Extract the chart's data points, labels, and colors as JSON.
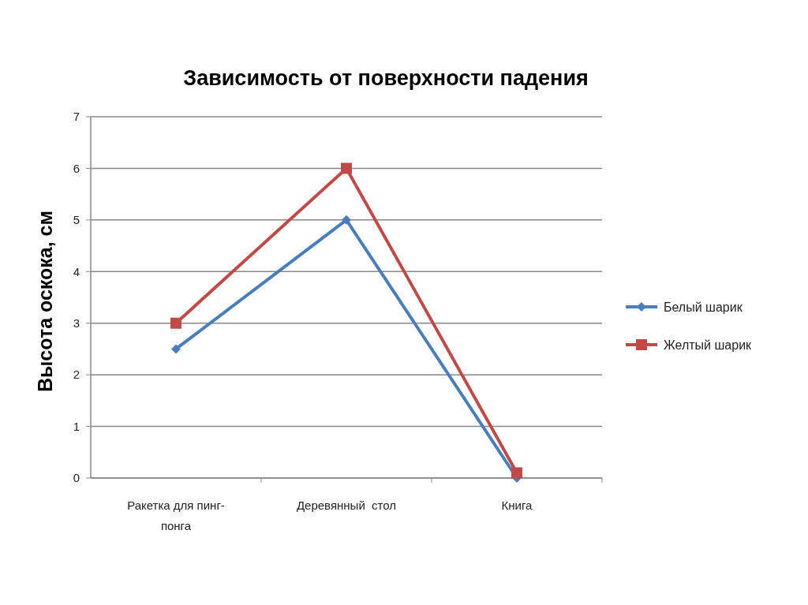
{
  "chart_data": {
    "type": "line",
    "title": "Зависимость от поверхности падения",
    "ylabel": "Высота оскока, см",
    "categories": [
      "Ракетка для пинг-понга",
      "Деревянный  стол",
      "Книга"
    ],
    "series": [
      {
        "name": "Белый шарик",
        "color": "#4a7ebb",
        "marker": "diamond",
        "values": [
          2.5,
          5,
          0
        ]
      },
      {
        "name": "Желтый шарик",
        "color": "#be4b48",
        "marker": "square",
        "values": [
          3,
          6,
          0.1
        ]
      }
    ],
    "ylim": [
      0,
      7
    ],
    "yticks": [
      0,
      1,
      2,
      3,
      4,
      5,
      6,
      7
    ],
    "grid": "y",
    "legend": "right"
  }
}
